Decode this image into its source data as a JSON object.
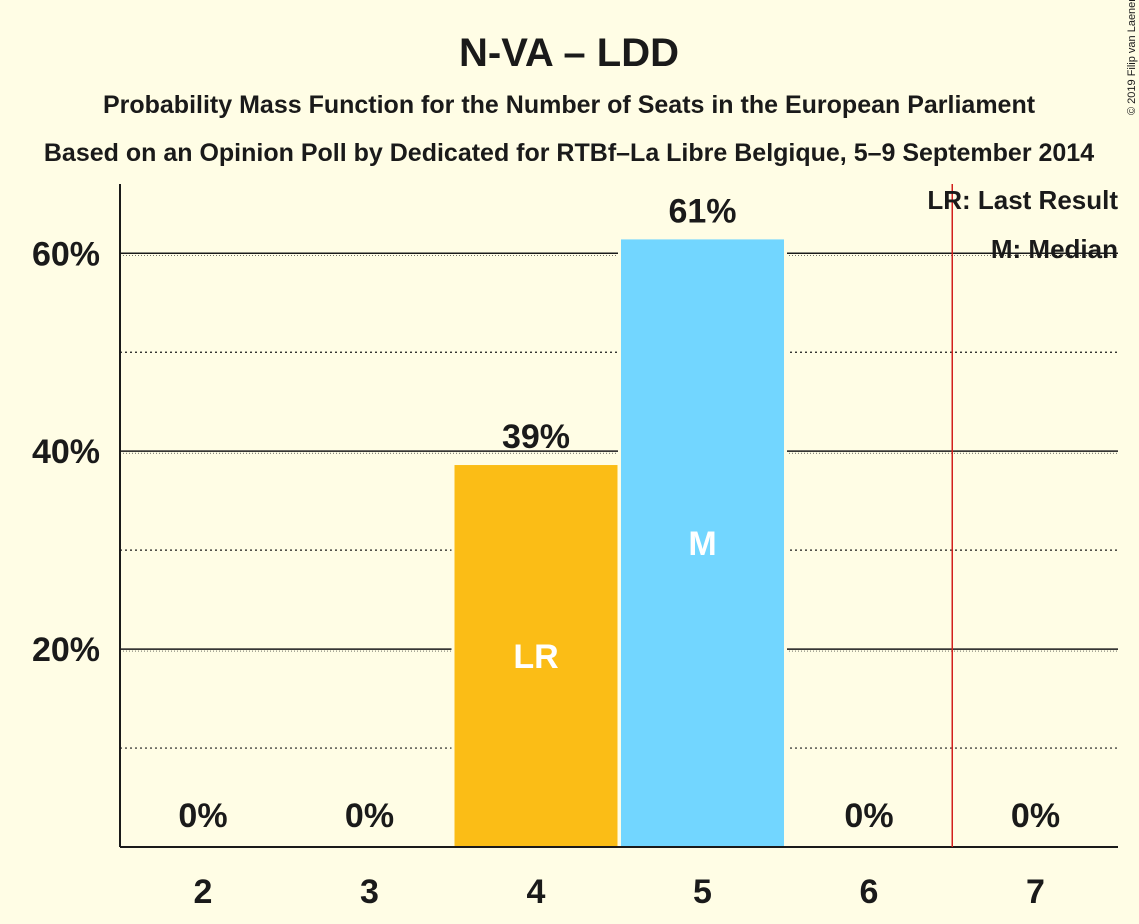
{
  "chart_data": {
    "type": "bar",
    "title": "N-VA – LDD",
    "subtitle": "Probability Mass Function for the Number of Seats in the European Parliament",
    "subtitle2": "Based on an Opinion Poll by Dedicated for RTBf–La Libre Belgique, 5–9 September 2014",
    "categories": [
      "2",
      "3",
      "4",
      "5",
      "6",
      "7"
    ],
    "values": [
      0,
      0,
      38.6,
      61.4,
      0,
      0
    ],
    "data_labels": [
      "0%",
      "0%",
      "39%",
      "61%",
      "0%",
      "0%"
    ],
    "bar_colors": [
      "#FBBD16",
      "#FBBD16",
      "#FBBD16",
      "#72D6FF",
      "#FBBD16",
      "#FBBD16"
    ],
    "bar_inner_labels": [
      "",
      "",
      "LR",
      "M",
      "",
      ""
    ],
    "y_ticks": [
      {
        "value": 20,
        "label": "20%"
      },
      {
        "value": 40,
        "label": "40%"
      },
      {
        "value": 60,
        "label": "60%"
      }
    ],
    "y_minor_ticks": [
      10,
      30,
      50
    ],
    "ylim": [
      0,
      67
    ],
    "last_result_line_position": 6.5,
    "last_result_color": "#D2201D",
    "legend": [
      "LR: Last Result",
      "M: Median"
    ],
    "legend_placement": "top-right",
    "grid": true,
    "copyright": "© 2019 Filip van Laenen"
  }
}
